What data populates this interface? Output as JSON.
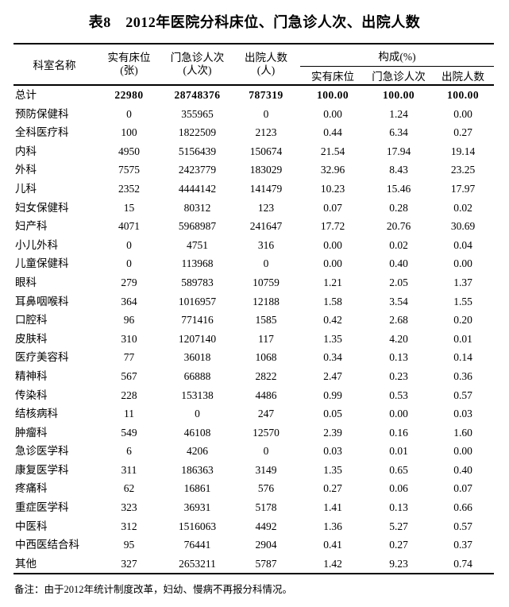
{
  "title": "表8　2012年医院分科床位、门急诊人次、出院人数",
  "table": {
    "header": {
      "department": "科室名称",
      "beds_line1": "实有床位",
      "beds_line2": "(张)",
      "visits_line1": "门急诊人次",
      "visits_line2": "(人次)",
      "discharged_line1": "出院人数",
      "discharged_line2": "(人)",
      "composition": "构成(%)",
      "sub_beds": "实有床位",
      "sub_visits": "门急诊人次",
      "sub_discharged": "出院人数"
    },
    "rows": [
      {
        "department": "总计",
        "beds": "22980",
        "visits": "28748376",
        "discharged": "787319",
        "pct_beds": "100.00",
        "pct_visits": "100.00",
        "pct_discharged": "100.00",
        "bold": true
      },
      {
        "department": "预防保健科",
        "beds": "0",
        "visits": "355965",
        "discharged": "0",
        "pct_beds": "0.00",
        "pct_visits": "1.24",
        "pct_discharged": "0.00",
        "bold": false
      },
      {
        "department": "全科医疗科",
        "beds": "100",
        "visits": "1822509",
        "discharged": "2123",
        "pct_beds": "0.44",
        "pct_visits": "6.34",
        "pct_discharged": "0.27",
        "bold": false
      },
      {
        "department": "内科",
        "beds": "4950",
        "visits": "5156439",
        "discharged": "150674",
        "pct_beds": "21.54",
        "pct_visits": "17.94",
        "pct_discharged": "19.14",
        "bold": false
      },
      {
        "department": "外科",
        "beds": "7575",
        "visits": "2423779",
        "discharged": "183029",
        "pct_beds": "32.96",
        "pct_visits": "8.43",
        "pct_discharged": "23.25",
        "bold": false
      },
      {
        "department": "儿科",
        "beds": "2352",
        "visits": "4444142",
        "discharged": "141479",
        "pct_beds": "10.23",
        "pct_visits": "15.46",
        "pct_discharged": "17.97",
        "bold": false
      },
      {
        "department": "妇女保健科",
        "beds": "15",
        "visits": "80312",
        "discharged": "123",
        "pct_beds": "0.07",
        "pct_visits": "0.28",
        "pct_discharged": "0.02",
        "bold": false
      },
      {
        "department": "妇产科",
        "beds": "4071",
        "visits": "5968987",
        "discharged": "241647",
        "pct_beds": "17.72",
        "pct_visits": "20.76",
        "pct_discharged": "30.69",
        "bold": false
      },
      {
        "department": "小儿外科",
        "beds": "0",
        "visits": "4751",
        "discharged": "316",
        "pct_beds": "0.00",
        "pct_visits": "0.02",
        "pct_discharged": "0.04",
        "bold": false
      },
      {
        "department": "儿童保健科",
        "beds": "0",
        "visits": "113968",
        "discharged": "0",
        "pct_beds": "0.00",
        "pct_visits": "0.40",
        "pct_discharged": "0.00",
        "bold": false
      },
      {
        "department": "眼科",
        "beds": "279",
        "visits": "589783",
        "discharged": "10759",
        "pct_beds": "1.21",
        "pct_visits": "2.05",
        "pct_discharged": "1.37",
        "bold": false
      },
      {
        "department": "耳鼻咽喉科",
        "beds": "364",
        "visits": "1016957",
        "discharged": "12188",
        "pct_beds": "1.58",
        "pct_visits": "3.54",
        "pct_discharged": "1.55",
        "bold": false
      },
      {
        "department": "口腔科",
        "beds": "96",
        "visits": "771416",
        "discharged": "1585",
        "pct_beds": "0.42",
        "pct_visits": "2.68",
        "pct_discharged": "0.20",
        "bold": false
      },
      {
        "department": "皮肤科",
        "beds": "310",
        "visits": "1207140",
        "discharged": "117",
        "pct_beds": "1.35",
        "pct_visits": "4.20",
        "pct_discharged": "0.01",
        "bold": false
      },
      {
        "department": "医疗美容科",
        "beds": "77",
        "visits": "36018",
        "discharged": "1068",
        "pct_beds": "0.34",
        "pct_visits": "0.13",
        "pct_discharged": "0.14",
        "bold": false
      },
      {
        "department": "精神科",
        "beds": "567",
        "visits": "66888",
        "discharged": "2822",
        "pct_beds": "2.47",
        "pct_visits": "0.23",
        "pct_discharged": "0.36",
        "bold": false
      },
      {
        "department": "传染科",
        "beds": "228",
        "visits": "153138",
        "discharged": "4486",
        "pct_beds": "0.99",
        "pct_visits": "0.53",
        "pct_discharged": "0.57",
        "bold": false
      },
      {
        "department": "结核病科",
        "beds": "11",
        "visits": "0",
        "discharged": "247",
        "pct_beds": "0.05",
        "pct_visits": "0.00",
        "pct_discharged": "0.03",
        "bold": false
      },
      {
        "department": "肿瘤科",
        "beds": "549",
        "visits": "46108",
        "discharged": "12570",
        "pct_beds": "2.39",
        "pct_visits": "0.16",
        "pct_discharged": "1.60",
        "bold": false
      },
      {
        "department": "急诊医学科",
        "beds": "6",
        "visits": "4206",
        "discharged": "0",
        "pct_beds": "0.03",
        "pct_visits": "0.01",
        "pct_discharged": "0.00",
        "bold": false
      },
      {
        "department": "康复医学科",
        "beds": "311",
        "visits": "186363",
        "discharged": "3149",
        "pct_beds": "1.35",
        "pct_visits": "0.65",
        "pct_discharged": "0.40",
        "bold": false
      },
      {
        "department": "疼痛科",
        "beds": "62",
        "visits": "16861",
        "discharged": "576",
        "pct_beds": "0.27",
        "pct_visits": "0.06",
        "pct_discharged": "0.07",
        "bold": false
      },
      {
        "department": "重症医学科",
        "beds": "323",
        "visits": "36931",
        "discharged": "5178",
        "pct_beds": "1.41",
        "pct_visits": "0.13",
        "pct_discharged": "0.66",
        "bold": false
      },
      {
        "department": "中医科",
        "beds": "312",
        "visits": "1516063",
        "discharged": "4492",
        "pct_beds": "1.36",
        "pct_visits": "5.27",
        "pct_discharged": "0.57",
        "bold": false
      },
      {
        "department": "中西医结合科",
        "beds": "95",
        "visits": "76441",
        "discharged": "2904",
        "pct_beds": "0.41",
        "pct_visits": "0.27",
        "pct_discharged": "0.37",
        "bold": false
      },
      {
        "department": "其他",
        "beds": "327",
        "visits": "2653211",
        "discharged": "5787",
        "pct_beds": "1.42",
        "pct_visits": "9.23",
        "pct_discharged": "0.74",
        "bold": false
      }
    ]
  },
  "note": "备注：由于2012年统计制度改革，妇幼、慢病不再报分科情况。"
}
